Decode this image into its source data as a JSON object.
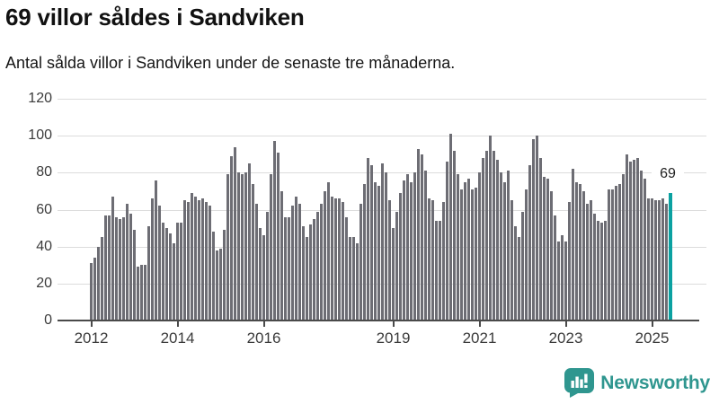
{
  "header": {
    "title": "69 villor såldes i Sandviken",
    "subtitle": "Antal sålda villor i Sandviken under de senaste tre månaderna."
  },
  "chart_data": {
    "type": "bar",
    "title": "69 villor såldes i Sandviken",
    "subtitle": "Antal sålda villor i Sandviken under de senaste tre månaderna.",
    "xlabel": "",
    "ylabel": "",
    "ylim": [
      0,
      120
    ],
    "yticks": [
      0,
      20,
      40,
      60,
      80,
      100,
      120
    ],
    "grid": "horizontal",
    "x_unit": "month",
    "x_start": "2012-01",
    "x_end": "2025-06",
    "bar_color": "#6d6d74",
    "highlight_color": "#0ba1a1",
    "highlight_last": true,
    "annotation": {
      "text": "69"
    },
    "x_tick_labels": [
      {
        "label": "2012",
        "month_index": 0
      },
      {
        "label": "2014",
        "month_index": 24
      },
      {
        "label": "2016",
        "month_index": 48
      },
      {
        "label": "2019",
        "month_index": 84
      },
      {
        "label": "2021",
        "month_index": 108
      },
      {
        "label": "2023",
        "month_index": 132
      },
      {
        "label": "2025",
        "month_index": 156
      }
    ],
    "values": [
      31,
      34,
      40,
      45,
      57,
      57,
      67,
      56,
      55,
      56,
      63,
      58,
      49,
      29,
      30,
      30,
      51,
      66,
      76,
      62,
      53,
      50,
      47,
      42,
      53,
      53,
      65,
      64,
      69,
      67,
      65,
      66,
      64,
      62,
      48,
      38,
      39,
      49,
      79,
      89,
      94,
      80,
      79,
      80,
      85,
      74,
      63,
      50,
      46,
      59,
      79,
      97,
      91,
      70,
      56,
      56,
      62,
      67,
      63,
      51,
      45,
      52,
      55,
      59,
      63,
      70,
      75,
      67,
      66,
      66,
      64,
      56,
      45,
      45,
      42,
      63,
      74,
      88,
      84,
      75,
      73,
      85,
      80,
      65,
      50,
      59,
      69,
      76,
      79,
      75,
      80,
      93,
      90,
      81,
      66,
      65,
      54,
      54,
      64,
      86,
      101,
      92,
      79,
      71,
      75,
      77,
      71,
      72,
      80,
      88,
      92,
      100,
      92,
      87,
      80,
      75,
      81,
      65,
      51,
      45,
      59,
      71,
      84,
      98,
      100,
      88,
      78,
      77,
      70,
      57,
      43,
      46,
      43,
      64,
      82,
      75,
      74,
      70,
      63,
      65,
      58,
      54,
      53,
      54,
      71,
      71,
      73,
      74,
      79,
      90,
      86,
      87,
      88,
      81,
      77,
      66,
      66,
      65,
      65,
      66,
      63,
      69
    ]
  },
  "footer": {
    "brand": "Newsworthy"
  }
}
